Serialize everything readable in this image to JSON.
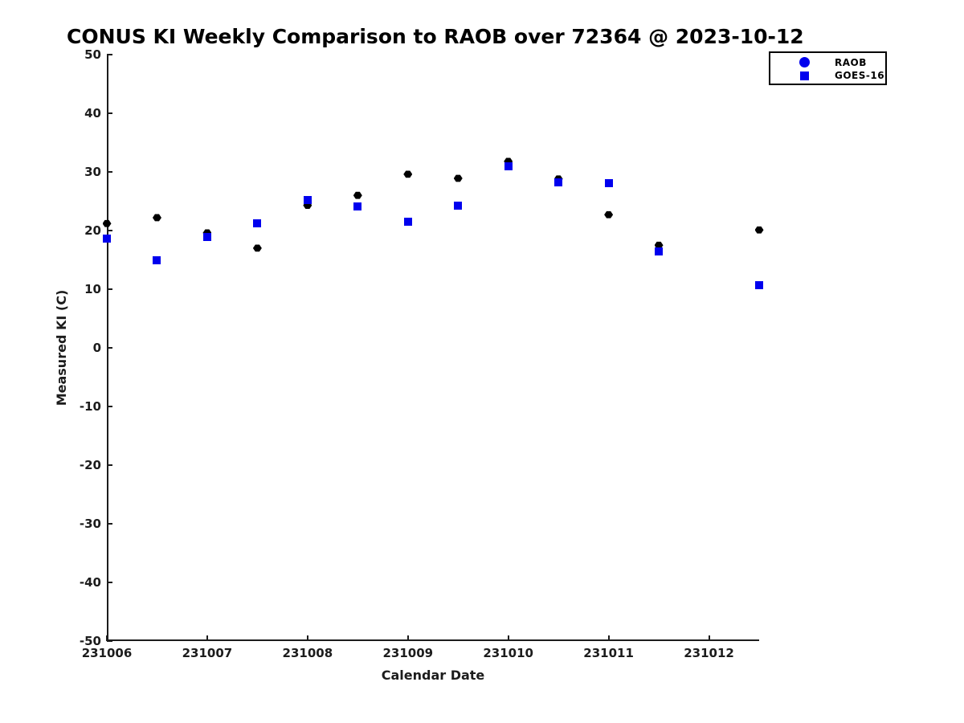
{
  "chart_data": {
    "type": "scatter",
    "title": "CONUS KI Weekly Comparison to RAOB over 72364 @ 2023-10-12",
    "xlabel": "Calendar Date",
    "ylabel": "Measured KI (C)",
    "xlim": [
      231006,
      231012.5
    ],
    "ylim": [
      -50,
      50
    ],
    "xticks": [
      231006,
      231007,
      231008,
      231009,
      231010,
      231011,
      231012
    ],
    "yticks": [
      50,
      40,
      30,
      20,
      10,
      0,
      -10,
      -20,
      -30,
      -40,
      -50
    ],
    "grid": false,
    "x": [
      231006,
      231006.5,
      231007,
      231007.5,
      231008,
      231008.5,
      231009,
      231009.5,
      231010,
      231010.5,
      231011,
      231011.5,
      231012.5
    ],
    "series": [
      {
        "name": "RAOB",
        "marker": "hexagon",
        "color": "#000000",
        "values": [
          21.2,
          22.2,
          19.6,
          17.0,
          24.3,
          26.0,
          29.6,
          28.9,
          31.8,
          28.8,
          22.7,
          17.5,
          20.1
        ]
      },
      {
        "name": "GOES-16",
        "marker": "square",
        "color": "#0000EE",
        "values": [
          18.6,
          15.0,
          18.9,
          21.2,
          25.2,
          24.1,
          21.5,
          24.2,
          31.0,
          28.2,
          28.1,
          16.4,
          10.7
        ]
      }
    ],
    "legend": {
      "position": "top-right",
      "entries": [
        {
          "label": "RAOB",
          "marker": "circle",
          "color": "#0000EE"
        },
        {
          "label": "GOES-16",
          "marker": "square",
          "color": "#0000EE"
        }
      ]
    },
    "colors": {
      "axis": "#1c1c1c",
      "background": "#ffffff"
    }
  }
}
